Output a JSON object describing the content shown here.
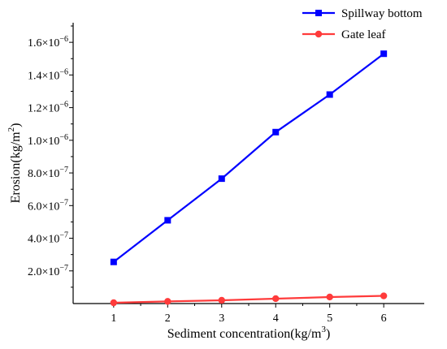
{
  "chart_data": {
    "type": "line",
    "xlabel": "Sediment concentration(kg/m³)",
    "ylabel": "Erosion(kg/m²)",
    "x": [
      1,
      2,
      3,
      4,
      5,
      6
    ],
    "xlim": [
      0.25,
      6.75
    ],
    "ylim": [
      0,
      1.72e-06
    ],
    "x_ticks": [
      1,
      2,
      3,
      4,
      5,
      6
    ],
    "y_ticks": [
      {
        "value": 2e-07,
        "mant": "2.0×10",
        "exp": "−7"
      },
      {
        "value": 4e-07,
        "mant": "4.0×10",
        "exp": "−7"
      },
      {
        "value": 6e-07,
        "mant": "6.0×10",
        "exp": "−7"
      },
      {
        "value": 8e-07,
        "mant": "8.0×10",
        "exp": "−7"
      },
      {
        "value": 1e-06,
        "mant": "1.0×10",
        "exp": "−6"
      },
      {
        "value": 1.2e-06,
        "mant": "1.2×10",
        "exp": "−6"
      },
      {
        "value": 1.4e-06,
        "mant": "1.4×10",
        "exp": "−6"
      },
      {
        "value": 1.6e-06,
        "mant": "1.6×10",
        "exp": "−6"
      }
    ],
    "grid": false,
    "legend_position": "top-right",
    "series": [
      {
        "name": "Spillway bottom",
        "color": "#0000ff",
        "marker": "square",
        "values": [
          2.55e-07,
          5.1e-07,
          7.65e-07,
          1.05e-06,
          1.28e-06,
          1.53e-06
        ]
      },
      {
        "name": "Gate leaf",
        "color": "#ff3b3b",
        "marker": "circle",
        "values": [
          5e-09,
          1.3e-08,
          2e-08,
          3e-08,
          4e-08,
          4.7e-08
        ]
      }
    ]
  }
}
